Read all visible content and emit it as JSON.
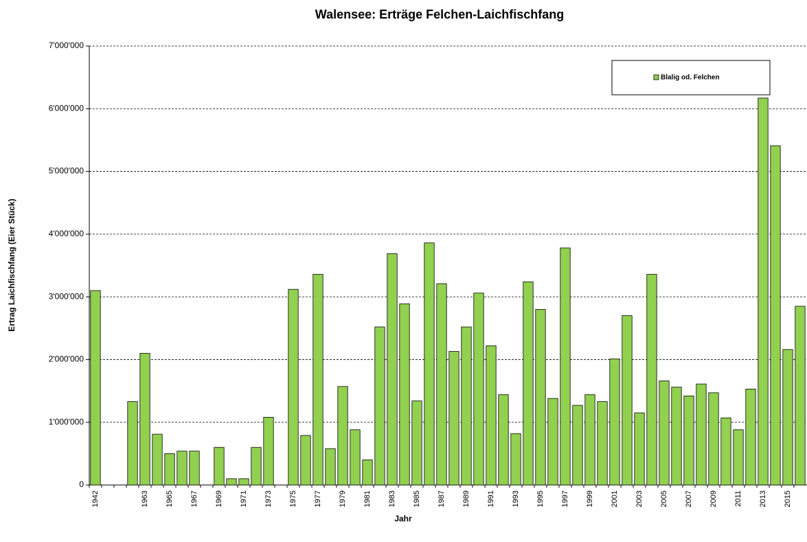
{
  "chart_data": {
    "type": "bar",
    "title": "Walensee: Erträge Felchen-Laichfischfang",
    "x_label": "Jahr",
    "y_label": "Ertrag Laichfischfang (Eier Stück)",
    "categories": [
      "1942",
      null,
      null,
      null,
      "1963",
      null,
      "1965",
      null,
      "1967",
      null,
      "1969",
      null,
      "1971",
      null,
      "1973",
      null,
      "1975",
      null,
      "1977",
      null,
      "1979",
      null,
      "1981",
      null,
      "1983",
      null,
      "1985",
      null,
      "1987",
      null,
      "1989",
      null,
      "1991",
      null,
      "1993",
      null,
      "1995",
      null,
      "1997",
      null,
      "1999",
      null,
      "2001",
      null,
      "2003",
      null,
      "2005",
      null,
      "2007",
      null,
      "2009",
      null,
      "2011",
      null,
      "2013",
      null,
      "2015",
      null
    ],
    "series": [
      {
        "name": "Blalig od. Felchen",
        "color": "#92d050",
        "values": [
          3100000,
          null,
          null,
          1330000,
          2100000,
          810000,
          500000,
          540000,
          540000,
          null,
          600000,
          100000,
          100000,
          600000,
          1080000,
          null,
          3120000,
          790000,
          3360000,
          580000,
          1570000,
          880000,
          400000,
          2520000,
          3690000,
          2890000,
          1340000,
          3860000,
          3210000,
          2130000,
          2520000,
          3060000,
          2220000,
          1440000,
          820000,
          3240000,
          2800000,
          1380000,
          3780000,
          1270000,
          1440000,
          1330000,
          2010000,
          2700000,
          1150000,
          3360000,
          1660000,
          1560000,
          1420000,
          1610000,
          1470000,
          1070000,
          880000,
          1530000,
          6170000,
          5410000,
          2160000,
          2850000
        ]
      }
    ],
    "ylim": [
      0,
      7000000
    ],
    "yticks": [
      0,
      {
        "value": 1000000,
        "label": "1'000'000"
      },
      {
        "value": 2000000,
        "label": "2'000'000"
      },
      {
        "value": 3000000,
        "label": "3'000'000"
      },
      {
        "value": 4000000,
        "label": "4'000'000"
      },
      {
        "value": 5000000,
        "label": "5'000'000"
      },
      {
        "value": 6000000,
        "label": "6'000'000"
      },
      {
        "value": 7000000,
        "label": "7'000'000"
      }
    ],
    "grid": true
  }
}
